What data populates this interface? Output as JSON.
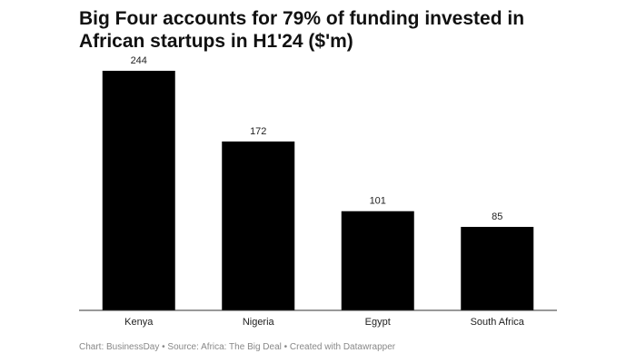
{
  "chart_data": {
    "type": "bar",
    "title": "Big Four accounts for 79% of funding invested in African startups in H1'24 ($'m)",
    "categories": [
      "Kenya",
      "Nigeria",
      "Egypt",
      "South Africa"
    ],
    "values": [
      244,
      172,
      101,
      85
    ],
    "color": "#000000",
    "source": "Chart: BusinessDay • Source: Africa: The Big Deal • Created with Datawrapper"
  }
}
